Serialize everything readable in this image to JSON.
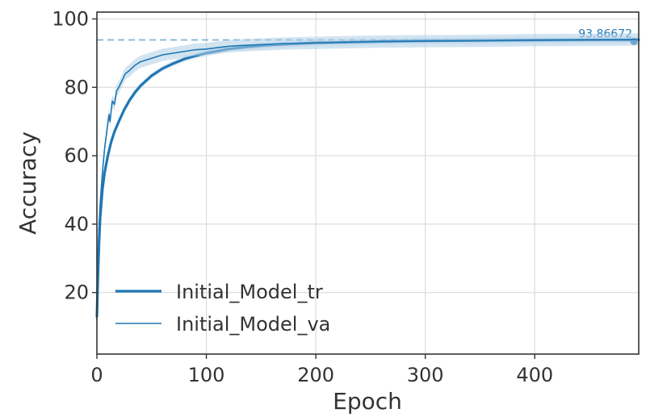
{
  "chart_data": {
    "type": "line",
    "xlabel": "Epoch",
    "ylabel": "Accuracy",
    "xlim": [
      0,
      495
    ],
    "ylim": [
      2,
      102
    ],
    "xticks": [
      0,
      100,
      200,
      300,
      400
    ],
    "yticks": [
      20,
      40,
      60,
      80,
      100
    ],
    "grid": true,
    "legend_position": "lower-left",
    "colors": {
      "series": "#1f77b4",
      "band": "#aecde6",
      "reference": "#7fb2d7",
      "text": "#333333",
      "grid": "#dcdcdc"
    },
    "reference_line": {
      "y": 93.86672,
      "label": "93.86672"
    },
    "series": [
      {
        "name": "Initial_Model_tr",
        "style": "thick",
        "x": [
          0,
          1,
          2,
          3,
          5,
          7,
          10,
          13,
          16,
          20,
          25,
          30,
          35,
          40,
          50,
          60,
          70,
          80,
          90,
          100,
          120,
          140,
          160,
          180,
          200,
          230,
          260,
          300,
          350,
          400,
          450,
          495
        ],
        "y": [
          13,
          25,
          35,
          42,
          50,
          55,
          60,
          64,
          67,
          70,
          73.5,
          76.3,
          78.6,
          80.5,
          83.4,
          85.5,
          87,
          88.3,
          89.2,
          90,
          91.2,
          91.9,
          92.4,
          92.7,
          93,
          93.2,
          93.4,
          93.6,
          93.7,
          93.8,
          93.85,
          93.87
        ]
      },
      {
        "name": "Initial_Model_va",
        "style": "thin",
        "x": [
          0,
          1,
          2,
          3,
          5,
          7,
          9,
          11,
          12,
          14,
          16,
          18,
          20,
          23,
          26,
          30,
          35,
          40,
          45,
          50,
          60,
          70,
          80,
          90,
          100,
          110,
          120,
          130,
          150,
          170,
          200,
          230,
          260,
          300,
          350,
          400,
          450,
          495
        ],
        "y": [
          12,
          30,
          40,
          46,
          55,
          62,
          67,
          72,
          70,
          76,
          75,
          79,
          80,
          82,
          84,
          85,
          86.5,
          87.5,
          88,
          88.5,
          89.5,
          90,
          90.5,
          91,
          91.2,
          91.6,
          92,
          92.2,
          92.5,
          92.8,
          93,
          93.2,
          93.4,
          93.5,
          93.6,
          93.8,
          93.9,
          94
        ]
      }
    ]
  }
}
